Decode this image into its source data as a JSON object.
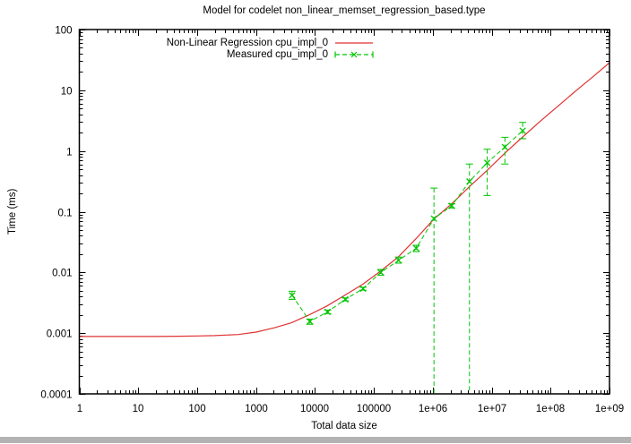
{
  "chart_data": {
    "type": "line",
    "title": "Model for codelet non_linear_memset_regression_based.type",
    "xlabel": "Total data size",
    "ylabel": "Time (ms)",
    "x_axis": {
      "scale": "log",
      "range": [
        1,
        1000000000
      ],
      "ticks": [
        {
          "value": 1,
          "label": "1"
        },
        {
          "value": 10,
          "label": "10"
        },
        {
          "value": 100,
          "label": "100"
        },
        {
          "value": 1000,
          "label": "1000"
        },
        {
          "value": 10000,
          "label": "10000"
        },
        {
          "value": 100000,
          "label": "100000"
        },
        {
          "value": 1000000,
          "label": "1e+06"
        },
        {
          "value": 10000000,
          "label": "1e+07"
        },
        {
          "value": 100000000,
          "label": "1e+08"
        },
        {
          "value": 1000000000,
          "label": "1e+09"
        }
      ],
      "minor_ticks": "log"
    },
    "y_axis": {
      "scale": "log",
      "range": [
        0.0001,
        100
      ],
      "ticks": [
        {
          "value": 100,
          "label": "100"
        },
        {
          "value": 10,
          "label": "10"
        },
        {
          "value": 1,
          "label": "1"
        },
        {
          "value": 0.1,
          "label": "0.1"
        },
        {
          "value": 0.01,
          "label": "0.01"
        },
        {
          "value": 0.001,
          "label": "0.001"
        },
        {
          "value": 0.0001,
          "label": "0.0001"
        }
      ],
      "minor_ticks": "log"
    },
    "legend_position": "top-center-inside",
    "grid": false,
    "series": [
      {
        "name": "Non-Linear Regression cpu_impl_0",
        "color": "#e03232",
        "style": "solid",
        "marker": "none",
        "points": [
          [
            1,
            0.00088
          ],
          [
            2,
            0.00088
          ],
          [
            5,
            0.00088
          ],
          [
            10,
            0.00088
          ],
          [
            20,
            0.00088
          ],
          [
            50,
            0.00089
          ],
          [
            100,
            0.0009
          ],
          [
            200,
            0.00091
          ],
          [
            500,
            0.00095
          ],
          [
            1000,
            0.00104
          ],
          [
            2000,
            0.00122
          ],
          [
            4000,
            0.00148
          ],
          [
            8000,
            0.002
          ],
          [
            16000,
            0.0028
          ],
          [
            32000,
            0.0042
          ],
          [
            65000,
            0.0064
          ],
          [
            130000,
            0.0105
          ],
          [
            260000,
            0.018
          ],
          [
            520000,
            0.036
          ],
          [
            1048576,
            0.076
          ],
          [
            2097152,
            0.135
          ],
          [
            4194304,
            0.26
          ],
          [
            8388608,
            0.48
          ],
          [
            16777216,
            0.92
          ],
          [
            33554432,
            1.7
          ],
          [
            67108864,
            3.1
          ],
          [
            134217728,
            5.5
          ],
          [
            268435456,
            9.8
          ],
          [
            536870912,
            17
          ],
          [
            1000000000,
            28.5
          ]
        ]
      },
      {
        "name": "Measured cpu_impl_0",
        "color": "#00c400",
        "style": "dashed",
        "marker": "x",
        "points_with_error": [
          {
            "x": 4096,
            "y": 0.0042,
            "lo": 0.0036,
            "hi": 0.0049
          },
          {
            "x": 8192,
            "y": 0.00156,
            "lo": 0.0014,
            "hi": 0.0017
          },
          {
            "x": 16384,
            "y": 0.00224,
            "lo": 0.0021,
            "hi": 0.0024
          },
          {
            "x": 32768,
            "y": 0.0036,
            "lo": 0.0034,
            "hi": 0.0038
          },
          {
            "x": 65536,
            "y": 0.0054,
            "lo": 0.0051,
            "hi": 0.0057
          },
          {
            "x": 131072,
            "y": 0.01,
            "lo": 0.009,
            "hi": 0.0112
          },
          {
            "x": 262144,
            "y": 0.0158,
            "lo": 0.0142,
            "hi": 0.0179
          },
          {
            "x": 524288,
            "y": 0.025,
            "lo": 0.022,
            "hi": 0.028
          },
          {
            "x": 1048576,
            "y": 0.077,
            "lo": 0.0001,
            "hi": 0.245
          },
          {
            "x": 2097152,
            "y": 0.125,
            "lo": 0.115,
            "hi": 0.135
          },
          {
            "x": 4194304,
            "y": 0.315,
            "lo": 0.0001,
            "hi": 0.61
          },
          {
            "x": 8388608,
            "y": 0.64,
            "lo": 0.185,
            "hi": 1.07
          },
          {
            "x": 16777216,
            "y": 1.16,
            "lo": 0.61,
            "hi": 1.68
          },
          {
            "x": 33554432,
            "y": 2.16,
            "lo": 1.59,
            "hi": 2.96
          }
        ]
      }
    ]
  },
  "bottom_bar_color": "#b3b3b3"
}
